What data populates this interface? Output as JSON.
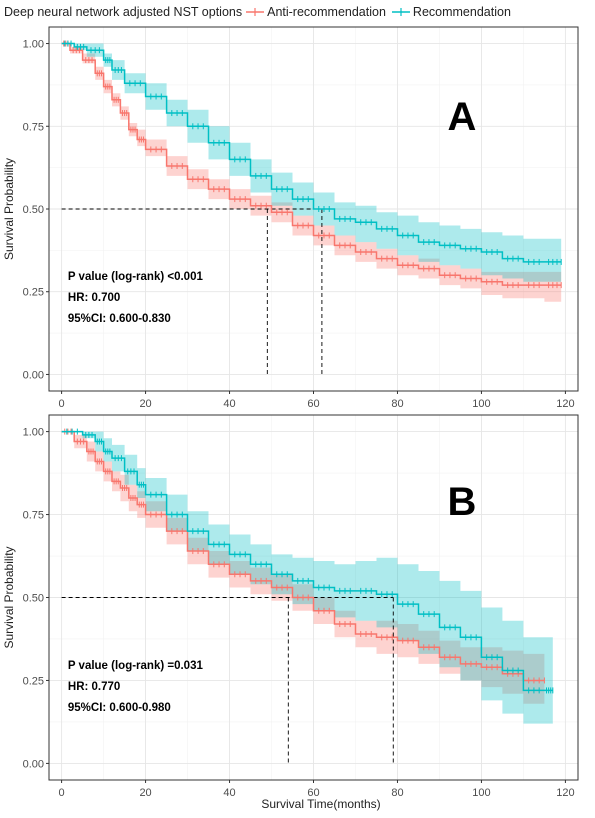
{
  "legend": {
    "title": "Deep neural network adjusted NST options",
    "entries": [
      {
        "label": "Anti-recommendation",
        "color": "#F8766D"
      },
      {
        "label": "Recommendation",
        "color": "#00BFC4"
      }
    ]
  },
  "chart_data": [
    {
      "type": "line",
      "panel": "A",
      "title": "",
      "xlabel": "",
      "ylabel": "Survival Probability",
      "xlim": [
        -3,
        123
      ],
      "ylim": [
        -0.05,
        1.05
      ],
      "xticks": [
        0,
        20,
        40,
        60,
        80,
        100,
        120
      ],
      "yticks": [
        0.0,
        0.25,
        0.5,
        0.75,
        1.0
      ],
      "ytick_labels": [
        "0.00",
        "0.25",
        "0.50",
        "0.75",
        "1.00"
      ],
      "grid": true,
      "median_line_y": 0.5,
      "median_times": [
        49,
        62
      ],
      "stats": [
        "P value (log-rank) <0.001",
        "HR: 0.700",
        "95%CI: 0.600-0.830"
      ],
      "series": [
        {
          "name": "Anti-recommendation",
          "color": "#F8766D",
          "x": [
            0,
            2,
            5,
            8,
            10,
            12,
            14,
            16,
            18,
            20,
            25,
            30,
            35,
            40,
            45,
            50,
            55,
            60,
            65,
            70,
            75,
            80,
            85,
            90,
            95,
            100,
            105,
            110,
            115,
            119
          ],
          "y": [
            1.0,
            0.98,
            0.95,
            0.91,
            0.87,
            0.83,
            0.79,
            0.74,
            0.71,
            0.68,
            0.63,
            0.59,
            0.56,
            0.53,
            0.51,
            0.49,
            0.45,
            0.42,
            0.39,
            0.37,
            0.35,
            0.33,
            0.32,
            0.3,
            0.29,
            0.28,
            0.27,
            0.27,
            0.27,
            0.27
          ],
          "lower": [
            1.0,
            0.97,
            0.94,
            0.89,
            0.85,
            0.81,
            0.77,
            0.72,
            0.69,
            0.66,
            0.6,
            0.56,
            0.53,
            0.5,
            0.48,
            0.46,
            0.42,
            0.39,
            0.36,
            0.34,
            0.32,
            0.3,
            0.29,
            0.27,
            0.26,
            0.24,
            0.23,
            0.23,
            0.22,
            0.22
          ],
          "upper": [
            1.0,
            0.99,
            0.97,
            0.93,
            0.89,
            0.85,
            0.81,
            0.76,
            0.74,
            0.71,
            0.66,
            0.62,
            0.59,
            0.56,
            0.54,
            0.52,
            0.48,
            0.45,
            0.42,
            0.4,
            0.38,
            0.36,
            0.35,
            0.33,
            0.32,
            0.31,
            0.31,
            0.31,
            0.31,
            0.31
          ]
        },
        {
          "name": "Recommendation",
          "color": "#00BFC4",
          "x": [
            0,
            3,
            6,
            10,
            12,
            15,
            20,
            25,
            30,
            35,
            40,
            45,
            50,
            55,
            60,
            65,
            70,
            75,
            80,
            85,
            90,
            95,
            100,
            105,
            110,
            115,
            119
          ],
          "y": [
            1.0,
            0.99,
            0.98,
            0.95,
            0.92,
            0.88,
            0.84,
            0.79,
            0.75,
            0.7,
            0.65,
            0.6,
            0.56,
            0.53,
            0.5,
            0.47,
            0.46,
            0.44,
            0.42,
            0.4,
            0.39,
            0.38,
            0.37,
            0.35,
            0.34,
            0.34,
            0.34
          ],
          "lower": [
            1.0,
            0.98,
            0.96,
            0.93,
            0.89,
            0.85,
            0.8,
            0.75,
            0.7,
            0.65,
            0.6,
            0.55,
            0.51,
            0.48,
            0.45,
            0.42,
            0.4,
            0.38,
            0.36,
            0.34,
            0.33,
            0.32,
            0.3,
            0.29,
            0.28,
            0.28,
            0.28
          ],
          "upper": [
            1.0,
            1.0,
            1.0,
            0.97,
            0.95,
            0.91,
            0.88,
            0.83,
            0.8,
            0.75,
            0.7,
            0.65,
            0.61,
            0.58,
            0.55,
            0.52,
            0.51,
            0.49,
            0.48,
            0.46,
            0.45,
            0.44,
            0.43,
            0.42,
            0.41,
            0.41,
            0.41
          ]
        }
      ]
    },
    {
      "type": "line",
      "panel": "B",
      "title": "",
      "xlabel": "Survival Time(months)",
      "ylabel": "Survival Probability",
      "xlim": [
        -3,
        123
      ],
      "ylim": [
        -0.05,
        1.05
      ],
      "xticks": [
        0,
        20,
        40,
        60,
        80,
        100,
        120
      ],
      "yticks": [
        0.0,
        0.25,
        0.5,
        0.75,
        1.0
      ],
      "ytick_labels": [
        "0.00",
        "0.25",
        "0.50",
        "0.75",
        "1.00"
      ],
      "grid": true,
      "median_line_y": 0.5,
      "median_times": [
        54,
        79
      ],
      "stats": [
        "P value (log-rank) =0.031",
        "HR: 0.770",
        "95%CI: 0.600-0.980"
      ],
      "series": [
        {
          "name": "Anti-recommendation",
          "color": "#F8766D",
          "x": [
            0,
            3,
            6,
            8,
            10,
            12,
            14,
            16,
            18,
            20,
            25,
            30,
            35,
            40,
            45,
            50,
            55,
            60,
            65,
            70,
            75,
            80,
            85,
            90,
            95,
            100,
            105,
            110,
            115
          ],
          "y": [
            1.0,
            0.97,
            0.94,
            0.91,
            0.88,
            0.85,
            0.83,
            0.8,
            0.78,
            0.75,
            0.7,
            0.64,
            0.6,
            0.57,
            0.55,
            0.53,
            0.5,
            0.46,
            0.42,
            0.39,
            0.38,
            0.37,
            0.35,
            0.32,
            0.3,
            0.29,
            0.27,
            0.25,
            0.25
          ],
          "lower": [
            1.0,
            0.95,
            0.91,
            0.88,
            0.85,
            0.82,
            0.79,
            0.76,
            0.74,
            0.71,
            0.66,
            0.6,
            0.56,
            0.53,
            0.51,
            0.49,
            0.46,
            0.42,
            0.38,
            0.35,
            0.33,
            0.32,
            0.3,
            0.27,
            0.25,
            0.23,
            0.21,
            0.18,
            0.16
          ],
          "upper": [
            1.0,
            0.99,
            0.97,
            0.94,
            0.91,
            0.88,
            0.87,
            0.84,
            0.82,
            0.79,
            0.74,
            0.68,
            0.64,
            0.61,
            0.59,
            0.57,
            0.54,
            0.5,
            0.46,
            0.43,
            0.43,
            0.42,
            0.4,
            0.37,
            0.35,
            0.35,
            0.34,
            0.33,
            0.34
          ]
        },
        {
          "name": "Recommendation",
          "color": "#00BFC4",
          "x": [
            0,
            5,
            8,
            10,
            12,
            15,
            18,
            20,
            25,
            30,
            35,
            40,
            45,
            50,
            55,
            60,
            65,
            70,
            75,
            80,
            85,
            90,
            95,
            100,
            105,
            110,
            115,
            117
          ],
          "y": [
            1.0,
            0.99,
            0.97,
            0.94,
            0.92,
            0.88,
            0.84,
            0.81,
            0.75,
            0.7,
            0.66,
            0.63,
            0.6,
            0.57,
            0.55,
            0.53,
            0.52,
            0.52,
            0.51,
            0.48,
            0.45,
            0.41,
            0.38,
            0.32,
            0.28,
            0.22,
            0.22,
            0.22
          ],
          "lower": [
            1.0,
            0.98,
            0.94,
            0.91,
            0.88,
            0.84,
            0.8,
            0.76,
            0.7,
            0.64,
            0.6,
            0.57,
            0.54,
            0.51,
            0.48,
            0.46,
            0.44,
            0.43,
            0.41,
            0.37,
            0.33,
            0.29,
            0.25,
            0.19,
            0.15,
            0.12,
            0.12,
            0.12
          ],
          "upper": [
            1.0,
            1.0,
            1.0,
            0.98,
            0.96,
            0.93,
            0.89,
            0.86,
            0.81,
            0.76,
            0.72,
            0.69,
            0.66,
            0.63,
            0.62,
            0.61,
            0.6,
            0.61,
            0.62,
            0.6,
            0.58,
            0.55,
            0.52,
            0.47,
            0.43,
            0.38,
            0.38,
            0.38
          ]
        }
      ]
    }
  ]
}
